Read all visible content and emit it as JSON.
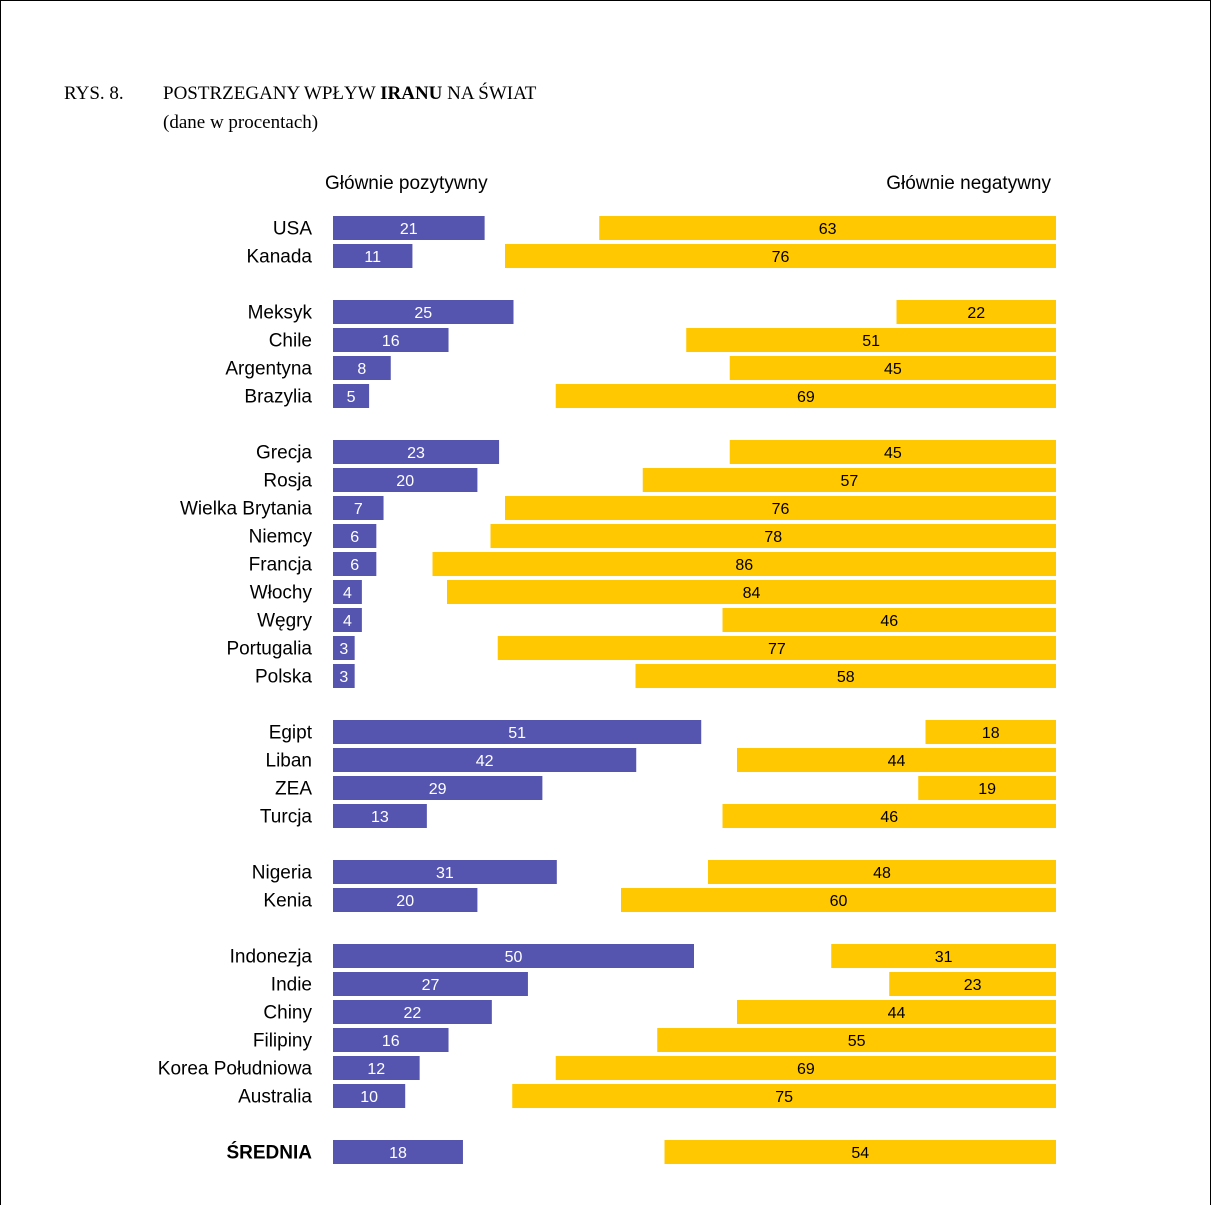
{
  "figure": {
    "number": "RYS. 8.",
    "title_pre": "POSTRZEGANY WPŁYW ",
    "title_bold": "IRANU",
    "title_post": " NA ŚWIAT",
    "subtitle": "(dane w procentach)"
  },
  "colors": {
    "positive": "#5555B0",
    "negative": "#FFC800",
    "positive_label": "#ffffff",
    "negative_label": "#000000"
  },
  "chart_data": {
    "type": "bar",
    "orientation": "horizontal",
    "title": "POSTRZEGANY WPŁYW IRANU NA ŚWIAT",
    "subtitle": "(dane w procentach)",
    "series": [
      {
        "name": "Głównie pozytywny",
        "values": [
          21,
          11,
          25,
          16,
          8,
          5,
          23,
          20,
          7,
          6,
          6,
          4,
          4,
          3,
          3,
          51,
          42,
          29,
          13,
          31,
          20,
          50,
          27,
          22,
          16,
          12,
          10,
          18
        ]
      },
      {
        "name": "Głównie negatywny",
        "values": [
          63,
          76,
          22,
          51,
          45,
          69,
          45,
          57,
          76,
          78,
          86,
          84,
          46,
          77,
          58,
          18,
          44,
          19,
          46,
          48,
          60,
          31,
          23,
          44,
          55,
          69,
          75,
          54
        ]
      }
    ],
    "categories": [
      "USA",
      "Kanada",
      "Meksyk",
      "Chile",
      "Argentyna",
      "Brazylia",
      "Grecja",
      "Rosja",
      "Wielka Brytania",
      "Niemcy",
      "Francja",
      "Włochy",
      "Węgry",
      "Portugalia",
      "Polska",
      "Egipt",
      "Liban",
      "ZEA",
      "Turcja",
      "Nigeria",
      "Kenia",
      "Indonezja",
      "Indie",
      "Chiny",
      "Filipiny",
      "Korea Południowa",
      "Australia",
      "ŚREDNIA"
    ],
    "groups": [
      [
        "USA",
        "Kanada"
      ],
      [
        "Meksyk",
        "Chile",
        "Argentyna",
        "Brazylia"
      ],
      [
        "Grecja",
        "Rosja",
        "Wielka Brytania",
        "Niemcy",
        "Francja",
        "Włochy",
        "Węgry",
        "Portugalia",
        "Polska"
      ],
      [
        "Egipt",
        "Liban",
        "ZEA",
        "Turcja"
      ],
      [
        "Nigeria",
        "Kenia"
      ],
      [
        "Indonezja",
        "Indie",
        "Chiny",
        "Filipiny",
        "Korea Południowa",
        "Australia"
      ],
      [
        "ŚREDNIA"
      ]
    ],
    "bold_categories": [
      "ŚREDNIA"
    ],
    "legend": {
      "left": "Głównie pozytywny",
      "right": "Głównie negatywny"
    }
  }
}
